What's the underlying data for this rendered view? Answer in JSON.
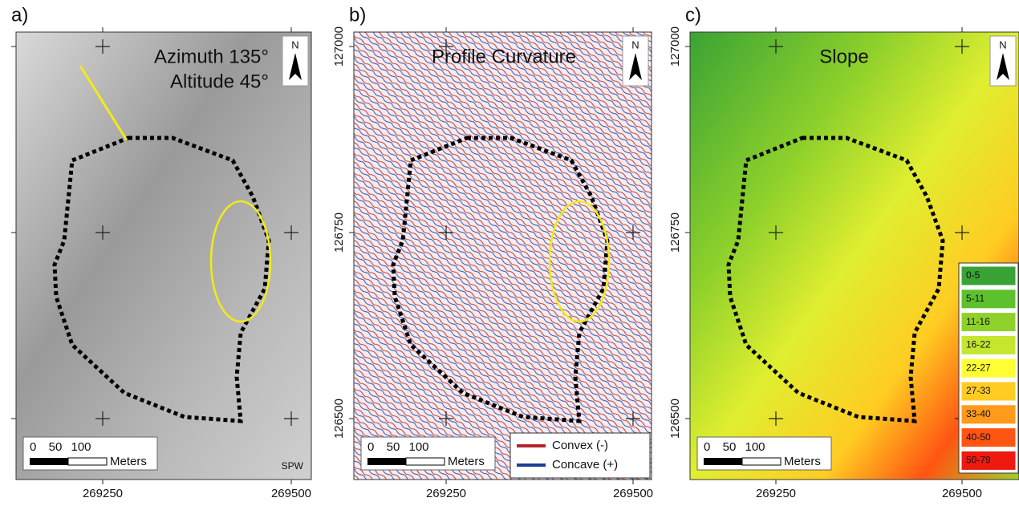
{
  "panels": [
    {
      "label": "a)",
      "title_lines": [
        "Azimuth 135°",
        "Altitude 45°"
      ],
      "north": "N",
      "x_ticks": [
        "269250",
        "269500"
      ],
      "scale": {
        "ticks": [
          "0",
          "50",
          "100"
        ],
        "unit": "Meters"
      },
      "credit": "SPW"
    },
    {
      "label": "b)",
      "title_lines": [
        "Profile Curvature"
      ],
      "north": "N",
      "y_ticks": [
        "127000",
        "126750",
        "126500"
      ],
      "x_ticks": [
        "269250",
        "269500"
      ],
      "scale": {
        "ticks": [
          "0",
          "50",
          "100"
        ],
        "unit": "Meters"
      },
      "legend": [
        {
          "label": "Convex (-)",
          "color": "#b3262a"
        },
        {
          "label": "Concave (+)",
          "color": "#1f3f95"
        }
      ]
    },
    {
      "label": "c)",
      "title_lines": [
        "Slope"
      ],
      "north": "N",
      "y_ticks": [
        "127000",
        "126750",
        "126500"
      ],
      "x_ticks": [
        "269250",
        "269500"
      ],
      "scale": {
        "ticks": [
          "0",
          "50",
          "100"
        ],
        "unit": "Meters"
      },
      "legend": [
        {
          "label": "0-5",
          "color": "#3aa335"
        },
        {
          "label": "5-11",
          "color": "#5cc12c"
        },
        {
          "label": "11-16",
          "color": "#8fd12b"
        },
        {
          "label": "16-22",
          "color": "#c4e62e"
        },
        {
          "label": "22-27",
          "color": "#ffff33"
        },
        {
          "label": "27-33",
          "color": "#ffcc22"
        },
        {
          "label": "33-40",
          "color": "#ff9a1a"
        },
        {
          "label": "40-50",
          "color": "#ff5512"
        },
        {
          "label": "50-79",
          "color": "#ee1a10"
        }
      ]
    }
  ]
}
